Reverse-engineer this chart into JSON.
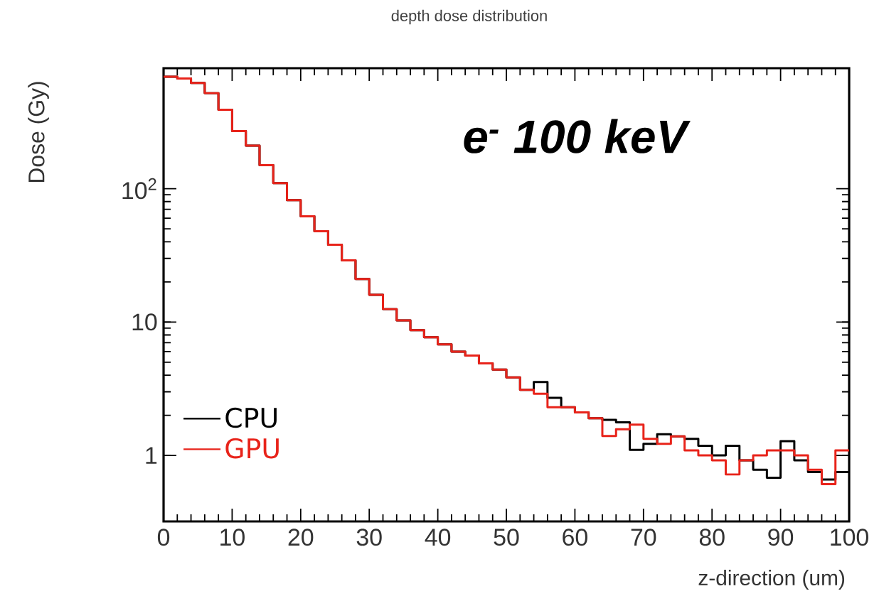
{
  "chart_data": {
    "type": "histogram",
    "title": "depth dose distribution",
    "xlabel": "z-direction (um)",
    "ylabel": "Dose (Gy)",
    "annotations": [
      "e$^{-}$ 100 keV"
    ],
    "bins": [
      0,
      2,
      4,
      6,
      8,
      10,
      12,
      14,
      16,
      18,
      20,
      22,
      24,
      26,
      28,
      30,
      32,
      34,
      36,
      38,
      40,
      42,
      44,
      46,
      48,
      50,
      52,
      54,
      56,
      58,
      60,
      62,
      64,
      66,
      68,
      70,
      72,
      74,
      76,
      78,
      80,
      82,
      84,
      86,
      88,
      90,
      92,
      94,
      96,
      98,
      100
    ],
    "series": [
      {
        "name": "CPU",
        "color": "#000000",
        "values": [
          690,
          670,
          620,
          520,
          390,
          270,
          210,
          150,
          110,
          82,
          62,
          48,
          38,
          29,
          21,
          16,
          12.5,
          10.3,
          8.7,
          7.7,
          6.8,
          6.0,
          5.6,
          4.9,
          4.4,
          3.85,
          3.1,
          3.55,
          2.7,
          2.3,
          2.1,
          1.9,
          1.85,
          1.77,
          1.1,
          1.22,
          1.44,
          1.39,
          1.33,
          1.18,
          1.0,
          1.18,
          0.92,
          0.78,
          0.68,
          1.28,
          0.92,
          0.75,
          0.66,
          0.75
        ]
      },
      {
        "name": "GPU",
        "color": "#e8231a",
        "values": [
          690,
          670,
          620,
          520,
          390,
          270,
          210,
          150,
          110,
          82,
          62,
          48,
          38,
          29,
          21,
          16,
          12.5,
          10.3,
          8.7,
          7.7,
          6.8,
          6.0,
          5.6,
          4.9,
          4.4,
          3.85,
          3.1,
          2.9,
          2.3,
          2.3,
          2.1,
          1.9,
          1.4,
          1.57,
          1.7,
          1.33,
          1.22,
          1.39,
          1.09,
          1.0,
          0.92,
          0.72,
          0.92,
          1.0,
          1.09,
          1.09,
          1.0,
          0.78,
          0.61,
          1.09
        ]
      }
    ],
    "xlim": [
      0,
      100
    ],
    "xticks": [
      0,
      10,
      20,
      30,
      40,
      50,
      60,
      70,
      80,
      90,
      100
    ],
    "ylim": [
      0.32,
      800
    ],
    "yticks": [
      1,
      10,
      {
        "value": 100,
        "label": "10$^{2}$"
      }
    ],
    "log": "y",
    "legend": "bottom left"
  }
}
